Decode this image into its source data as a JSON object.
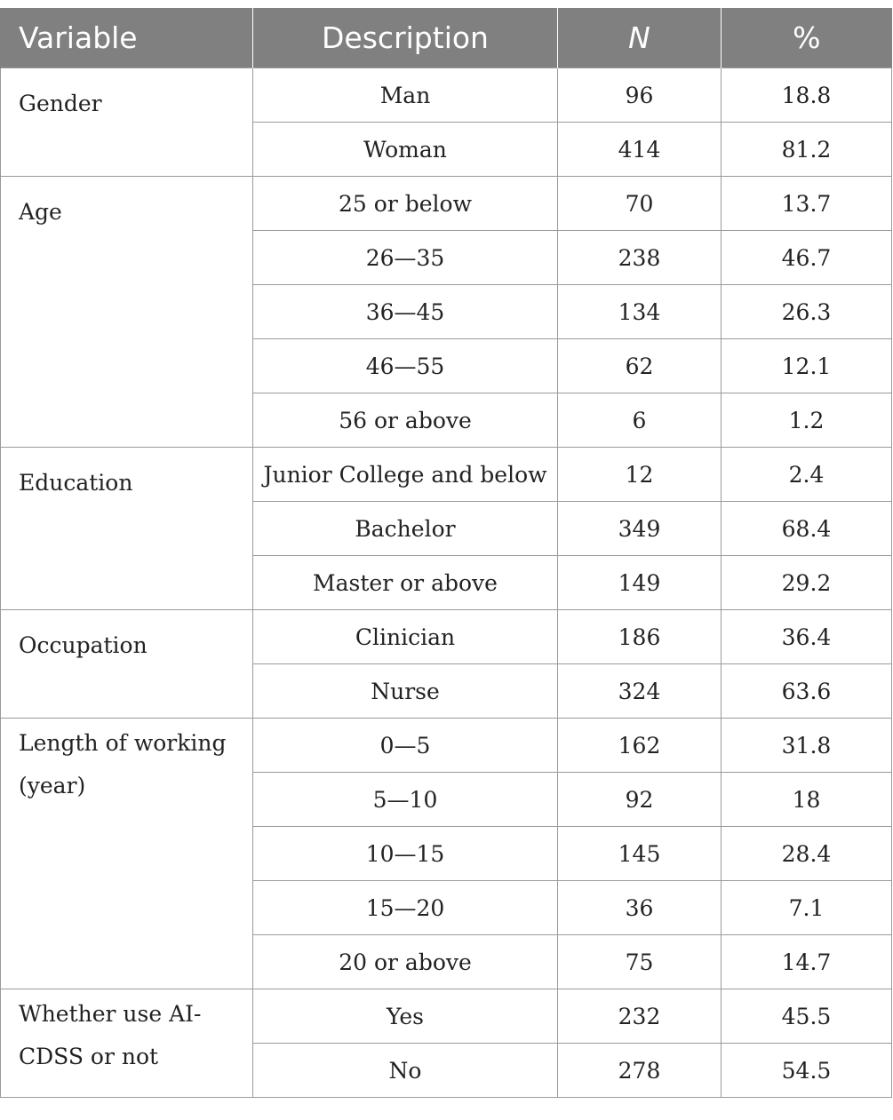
{
  "table": {
    "headers": {
      "variable": "Variable",
      "description": "Description",
      "n": "N",
      "pct": "%"
    },
    "groups": [
      {
        "variable_lines": [
          "Gender"
        ],
        "rows": [
          {
            "description": "Man",
            "n": "96",
            "pct": "18.8"
          },
          {
            "description": "Woman",
            "n": "414",
            "pct": "81.2"
          }
        ]
      },
      {
        "variable_lines": [
          "Age"
        ],
        "rows": [
          {
            "description": "25 or below",
            "n": "70",
            "pct": "13.7"
          },
          {
            "description": "26—35",
            "n": "238",
            "pct": "46.7"
          },
          {
            "description": "36—45",
            "n": "134",
            "pct": "26.3"
          },
          {
            "description": "46—55",
            "n": "62",
            "pct": "12.1"
          },
          {
            "description": "56 or above",
            "n": "6",
            "pct": "1.2"
          }
        ]
      },
      {
        "variable_lines": [
          "Education"
        ],
        "rows": [
          {
            "description": "Junior College and below",
            "n": "12",
            "pct": "2.4"
          },
          {
            "description": "Bachelor",
            "n": "349",
            "pct": "68.4"
          },
          {
            "description": "Master or above",
            "n": "149",
            "pct": "29.2"
          }
        ]
      },
      {
        "variable_lines": [
          "Occupation"
        ],
        "rows": [
          {
            "description": "Clinician",
            "n": "186",
            "pct": "36.4"
          },
          {
            "description": "Nurse",
            "n": "324",
            "pct": "63.6"
          }
        ]
      },
      {
        "variable_lines": [
          "Length of working",
          "(year)"
        ],
        "rows": [
          {
            "description": "0—5",
            "n": "162",
            "pct": "31.8"
          },
          {
            "description": "5—10",
            "n": "92",
            "pct": "18"
          },
          {
            "description": "10—15",
            "n": "145",
            "pct": "28.4"
          },
          {
            "description": "15—20",
            "n": "36",
            "pct": "7.1"
          },
          {
            "description": "20 or above",
            "n": "75",
            "pct": "14.7"
          }
        ]
      },
      {
        "variable_lines": [
          "Whether use AI-",
          "CDSS or not"
        ],
        "rows": [
          {
            "description": "Yes",
            "n": "232",
            "pct": "45.5"
          },
          {
            "description": "No",
            "n": "278",
            "pct": "54.5"
          }
        ]
      }
    ]
  }
}
